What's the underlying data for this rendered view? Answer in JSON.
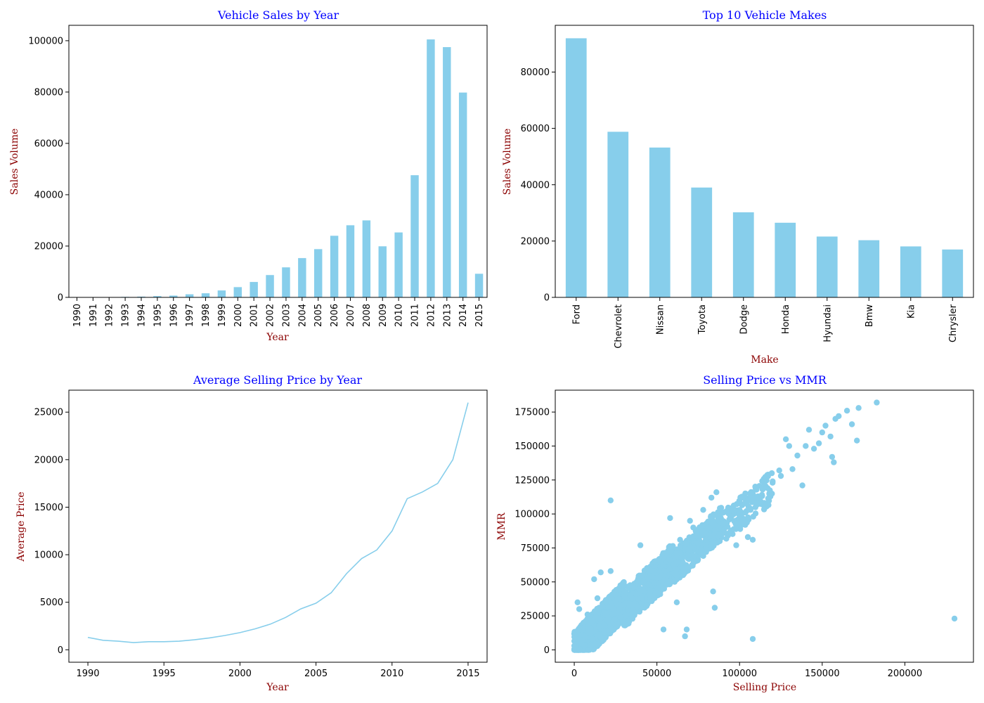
{
  "colors": {
    "mark": "#87ceeb",
    "title": "#0000ff",
    "label": "#8b0000"
  },
  "chart_data": [
    {
      "type": "bar",
      "title": "Vehicle Sales by Year",
      "xlabel": "Year",
      "ylabel": "Sales Volume",
      "categories": [
        "1990",
        "1991",
        "1992",
        "1993",
        "1994",
        "1995",
        "1996",
        "1997",
        "1998",
        "1999",
        "2000",
        "2001",
        "2002",
        "2003",
        "2004",
        "2005",
        "2006",
        "2007",
        "2008",
        "2009",
        "2010",
        "2011",
        "2012",
        "2013",
        "2014",
        "2015"
      ],
      "values": [
        20,
        70,
        120,
        200,
        300,
        500,
        700,
        1200,
        1600,
        2700,
        4000,
        6000,
        8700,
        11700,
        15300,
        18800,
        24000,
        28100,
        30000,
        19900,
        25300,
        47600,
        100500,
        97500,
        79800,
        9200
      ],
      "ylim": [
        0,
        106000
      ],
      "yticks": [
        0,
        20000,
        40000,
        60000,
        80000,
        100000
      ],
      "ytick_labels": [
        "0",
        "20000",
        "40000",
        "60000",
        "80000",
        "100000"
      ]
    },
    {
      "type": "bar",
      "title": "Top 10 Vehicle Makes",
      "xlabel": "Make",
      "ylabel": "Sales Volume",
      "categories": [
        "Ford",
        "Chevrolet",
        "Nissan",
        "Toyota",
        "Dodge",
        "Honda",
        "Hyundai",
        "Bmw",
        "Kia",
        "Chrysler"
      ],
      "values": [
        92000,
        58800,
        53200,
        39000,
        30200,
        26500,
        21600,
        20300,
        18100,
        17000
      ],
      "ylim": [
        0,
        96600
      ],
      "yticks": [
        0,
        20000,
        40000,
        60000,
        80000
      ],
      "ytick_labels": [
        "0",
        "20000",
        "40000",
        "60000",
        "80000"
      ]
    },
    {
      "type": "line",
      "title": "Average Selling Price by Year",
      "xlabel": "Year",
      "ylabel": "Average Price",
      "x": [
        1990,
        1991,
        1992,
        1993,
        1994,
        1995,
        1996,
        1997,
        1998,
        1999,
        2000,
        2001,
        2002,
        2003,
        2004,
        2005,
        2006,
        2007,
        2008,
        2009,
        2010,
        2011,
        2012,
        2013,
        2014,
        2015
      ],
      "y": [
        1300,
        1000,
        900,
        750,
        850,
        850,
        900,
        1050,
        1250,
        1500,
        1800,
        2200,
        2700,
        3400,
        4300,
        4900,
        6000,
        8000,
        9600,
        10500,
        12500,
        15900,
        16600,
        17500,
        20000,
        26000
      ],
      "xlim": [
        1988.75,
        2016.25
      ],
      "ylim": [
        -1310,
        27310
      ],
      "xticks": [
        1990,
        1995,
        2000,
        2005,
        2010,
        2015
      ],
      "xtick_labels": [
        "1990",
        "1995",
        "2000",
        "2005",
        "2010",
        "2015"
      ],
      "yticks": [
        0,
        5000,
        10000,
        15000,
        20000,
        25000
      ],
      "ytick_labels": [
        "0",
        "5000",
        "10000",
        "15000",
        "20000",
        "25000"
      ]
    },
    {
      "type": "scatter",
      "title": "Selling Price vs MMR",
      "xlabel": "Selling Price",
      "ylabel": "MMR",
      "xlim": [
        -11500,
        241500
      ],
      "ylim": [
        -9100,
        191100
      ],
      "xticks": [
        0,
        50000,
        100000,
        150000,
        200000
      ],
      "xtick_labels": [
        "0",
        "50000",
        "100000",
        "150000",
        "200000"
      ],
      "yticks": [
        0,
        25000,
        50000,
        75000,
        100000,
        125000,
        150000,
        175000
      ],
      "ytick_labels": [
        "0",
        "25000",
        "50000",
        "75000",
        "100000",
        "125000",
        "150000",
        "175000"
      ],
      "points": [
        [
          183000,
          182000
        ],
        [
          230000,
          23000
        ],
        [
          108000,
          8000
        ],
        [
          22000,
          110000
        ],
        [
          172000,
          178000
        ],
        [
          165000,
          176000
        ],
        [
          158000,
          170000
        ],
        [
          160000,
          172000
        ],
        [
          168000,
          166000
        ],
        [
          152000,
          165000
        ],
        [
          150000,
          160000
        ],
        [
          155000,
          157000
        ],
        [
          142000,
          162000
        ],
        [
          148000,
          152000
        ],
        [
          145000,
          148000
        ],
        [
          140000,
          150000
        ],
        [
          135000,
          143000
        ],
        [
          130000,
          150000
        ],
        [
          128000,
          155000
        ],
        [
          138000,
          121000
        ],
        [
          157000,
          138000
        ],
        [
          171000,
          154000
        ],
        [
          156000,
          142000
        ],
        [
          132000,
          133000
        ],
        [
          125000,
          128000
        ],
        [
          120000,
          124000
        ],
        [
          118000,
          115000
        ],
        [
          110000,
          112000
        ],
        [
          105000,
          110000
        ],
        [
          100000,
          103000
        ],
        [
          95000,
          98000
        ],
        [
          90000,
          93000
        ],
        [
          85000,
          88000
        ],
        [
          80000,
          85000
        ],
        [
          75000,
          78000
        ],
        [
          70000,
          73000
        ],
        [
          65000,
          68000
        ],
        [
          60000,
          63000
        ],
        [
          55000,
          58000
        ],
        [
          50000,
          53000
        ],
        [
          45000,
          48000
        ],
        [
          40000,
          43000
        ],
        [
          35000,
          38000
        ],
        [
          30000,
          33000
        ],
        [
          25000,
          27000
        ],
        [
          20000,
          22000
        ],
        [
          15000,
          17000
        ],
        [
          10000,
          12000
        ],
        [
          5000,
          7000
        ],
        [
          1000,
          2000
        ],
        [
          108000,
          81000
        ],
        [
          105000,
          83000
        ],
        [
          98000,
          77000
        ],
        [
          85000,
          31000
        ],
        [
          84000,
          43000
        ],
        [
          68000,
          15000
        ],
        [
          67000,
          10000
        ],
        [
          54000,
          15000
        ],
        [
          58000,
          97000
        ],
        [
          62000,
          35000
        ],
        [
          40000,
          77000
        ],
        [
          12000,
          52000
        ],
        [
          16000,
          57000
        ],
        [
          22000,
          58000
        ],
        [
          70000,
          95000
        ],
        [
          78000,
          103000
        ],
        [
          83000,
          112000
        ],
        [
          86000,
          116000
        ],
        [
          115000,
          122000
        ],
        [
          124000,
          132000
        ],
        [
          3000,
          30000
        ],
        [
          2000,
          35000
        ],
        [
          8000,
          26000
        ],
        [
          14000,
          38000
        ],
        [
          30000,
          48000
        ],
        [
          36000,
          30000
        ],
        [
          44000,
          52000
        ],
        [
          52000,
          41000
        ],
        [
          64000,
          81000
        ],
        [
          72000,
          90000
        ],
        [
          92000,
          102000
        ],
        [
          96000,
          105000
        ],
        [
          102000,
          95000
        ],
        [
          88000,
          80000
        ],
        [
          76000,
          72000
        ],
        [
          66000,
          60000
        ],
        [
          56000,
          48000
        ],
        [
          46000,
          40000
        ],
        [
          38000,
          32000
        ],
        [
          28000,
          24000
        ],
        [
          18000,
          14000
        ],
        [
          11000,
          8000
        ],
        [
          6000,
          3000
        ],
        [
          24000,
          30000
        ],
        [
          34000,
          40000
        ],
        [
          42000,
          50000
        ],
        [
          48000,
          58000
        ],
        [
          58000,
          66000
        ],
        [
          74000,
          84000
        ],
        [
          82000,
          94000
        ]
      ],
      "band": [
        {
          "x": [
            0,
            30000
          ],
          "y": [
            0,
            36000
          ],
          "w": 14000,
          "n": 900
        },
        {
          "x": [
            30000,
            60000
          ],
          "y": [
            30000,
            65000
          ],
          "w": 14000,
          "n": 500
        },
        {
          "x": [
            60000,
            90000
          ],
          "y": [
            60000,
            95000
          ],
          "w": 12000,
          "n": 300
        },
        {
          "x": [
            90000,
            120000
          ],
          "y": [
            90000,
            120000
          ],
          "w": 12000,
          "n": 120
        }
      ]
    }
  ]
}
